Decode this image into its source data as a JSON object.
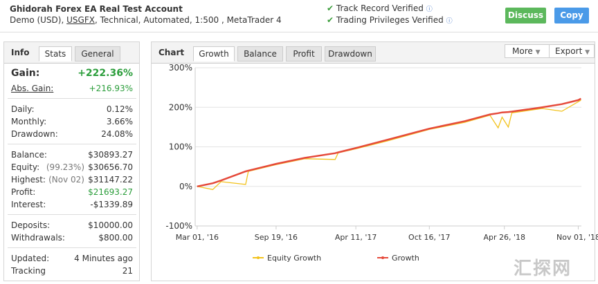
{
  "header": {
    "account_name": "Ghidorah Forex EA Real Test Account",
    "subtitle_prefix": "Demo (USD),",
    "broker": "USGFX",
    "subtitle_suffix": ", Technical, Automated, 1:500 , MetaTrader 4",
    "verified": [
      "Track Record Verified",
      "Trading Privileges Verified"
    ],
    "buttons": [
      "Discuss",
      "Copy"
    ]
  },
  "info_panel": {
    "tabs": [
      "Info",
      "Stats",
      "General"
    ],
    "groups": [
      [
        {
          "label": "Gain:",
          "value": "+222.36%"
        },
        {
          "label": "Abs. Gain:",
          "value": "+216.93%"
        }
      ],
      [
        {
          "label": "Daily:",
          "value": "0.12%"
        },
        {
          "label": "Monthly:",
          "value": "3.66%"
        },
        {
          "label": "Drawdown:",
          "value": "24.08%"
        }
      ],
      [
        {
          "label": "Balance:",
          "value": "$30893.27"
        },
        {
          "label": "Equity:",
          "note": "(99.23%)",
          "value": "$30656.70"
        },
        {
          "label": "Highest:",
          "note": "(Nov 02)",
          "value": "$31147.22"
        },
        {
          "label": "Profit:",
          "value": "$21693.27"
        },
        {
          "label": "Interest:",
          "value": "-$1339.89"
        }
      ],
      [
        {
          "label": "Deposits:",
          "value": "$10000.00"
        },
        {
          "label": "Withdrawals:",
          "value": "$800.00"
        }
      ],
      [
        {
          "label": "Updated:",
          "value": "4 Minutes ago"
        },
        {
          "label": "Tracking",
          "value": "21"
        }
      ]
    ]
  },
  "chart_panel": {
    "tabs": [
      "Chart",
      "Growth",
      "Balance",
      "Profit",
      "Drawdown"
    ],
    "menus": [
      "More",
      "Export"
    ]
  },
  "watermark": "汇探网",
  "chart_data": {
    "type": "line",
    "x": [
      "2016-03-01",
      "2016-04-10",
      "2016-05-01",
      "2016-07-03",
      "2016-07-10",
      "2016-09-19",
      "2016-12-01",
      "2017-02-17",
      "2017-02-25",
      "2017-04-11",
      "2017-07-01",
      "2017-10-16",
      "2018-01-15",
      "2018-03-20",
      "2018-04-10",
      "2018-04-20",
      "2018-05-06",
      "2018-05-15",
      "2018-08-01",
      "2018-09-20",
      "2018-11-01",
      "2018-11-08"
    ],
    "series": [
      {
        "name": "Equity Growth",
        "color": "#f2c21b",
        "values": [
          0,
          -8,
          12,
          5,
          38,
          55,
          70,
          68,
          85,
          95,
          115,
          144,
          162,
          180,
          148,
          175,
          150,
          186,
          197,
          190,
          214,
          218
        ]
      },
      {
        "name": "Growth",
        "color": "#e5493a",
        "values": [
          0,
          8,
          15,
          38,
          40,
          57,
          72,
          84,
          86,
          97,
          118,
          146,
          165,
          182,
          185,
          187,
          188,
          189,
          200,
          208,
          218,
          222
        ]
      }
    ],
    "xlim": [
      "2016-02-25",
      "2018-11-09"
    ],
    "xticks": [
      {
        "value": "2016-03-01",
        "label": "Mar 01, '16"
      },
      {
        "value": "2016-09-19",
        "label": "Sep 19, '16"
      },
      {
        "value": "2017-04-11",
        "label": "Apr 11, '17"
      },
      {
        "value": "2017-10-16",
        "label": "Oct 16, '17"
      },
      {
        "value": "2018-04-26",
        "label": "Apr 26, '18"
      },
      {
        "value": "2018-11-01",
        "label": "Nov 01, '18"
      }
    ],
    "ylim": [
      -100,
      300
    ],
    "yticks": [
      {
        "value": -100,
        "label": "-100%"
      },
      {
        "value": 0,
        "label": "0%"
      },
      {
        "value": 100,
        "label": "100%"
      },
      {
        "value": 200,
        "label": "200%"
      },
      {
        "value": 300,
        "label": "300%"
      }
    ],
    "grid": true
  }
}
